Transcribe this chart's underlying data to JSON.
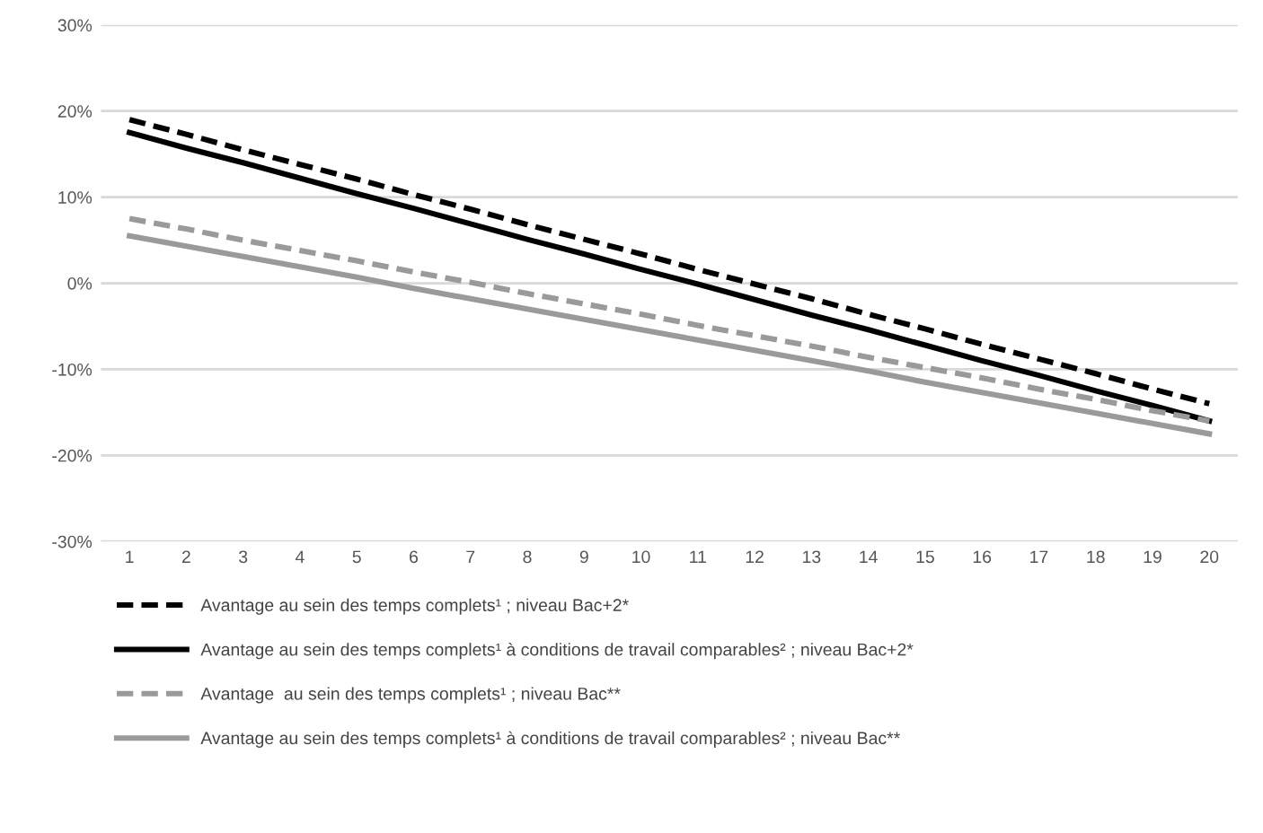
{
  "chart_data": {
    "type": "line",
    "categories": [
      "1",
      "2",
      "3",
      "4",
      "5",
      "6",
      "7",
      "8",
      "9",
      "10",
      "11",
      "12",
      "13",
      "14",
      "15",
      "16",
      "17",
      "18",
      "19",
      "20"
    ],
    "series": [
      {
        "name": "Avantage au sein des temps complets¹ ; niveau Bac+2*",
        "color": "#000000",
        "line_style": "dashed",
        "values": [
          19,
          17.3,
          15.5,
          13.8,
          12.1,
          10.3,
          8.6,
          6.8,
          5.1,
          3.4,
          1.6,
          -0.1,
          -1.8,
          -3.6,
          -5.3,
          -7.1,
          -8.8,
          -10.5,
          -12.3,
          -14
        ]
      },
      {
        "name": "Avantage au sein des temps complets¹ à conditions de travail comparables² ; niveau Bac+2*",
        "color": "#000000",
        "line_style": "solid",
        "values": [
          17.5,
          15.7,
          14.0,
          12.2,
          10.4,
          8.7,
          6.9,
          5.1,
          3.4,
          1.6,
          -0.1,
          -1.9,
          -3.7,
          -5.4,
          -7.2,
          -9.0,
          -10.7,
          -12.5,
          -14.2,
          -16
        ]
      },
      {
        "name": "Avantage  au sein des temps complets¹ ; niveau Bac**",
        "color": "#9a9a9a",
        "line_style": "dashed",
        "values": [
          7.5,
          6.3,
          5.0,
          3.8,
          2.6,
          1.3,
          0.1,
          -1.2,
          -2.4,
          -3.6,
          -4.9,
          -6.1,
          -7.3,
          -8.6,
          -9.8,
          -11.0,
          -12.3,
          -13.5,
          -14.8,
          -16
        ]
      },
      {
        "name": "Avantage au sein des temps complets¹ à conditions de travail comparables² ; niveau Bac**",
        "color": "#9a9a9a",
        "line_style": "solid",
        "values": [
          5.5,
          4.3,
          3.1,
          1.9,
          0.7,
          -0.6,
          -1.8,
          -3.0,
          -4.2,
          -5.4,
          -6.6,
          -7.8,
          -9.0,
          -10.2,
          -11.5,
          -12.7,
          -13.9,
          -15.1,
          -16.3,
          -17.5
        ]
      }
    ],
    "ylim": [
      -30,
      30
    ],
    "yticks": [
      {
        "value": -30,
        "label": "-30%"
      },
      {
        "value": -20,
        "label": "-20%"
      },
      {
        "value": -10,
        "label": "-10%"
      },
      {
        "value": 0,
        "label": "0%"
      },
      {
        "value": 10,
        "label": "10%"
      },
      {
        "value": 20,
        "label": "20%"
      },
      {
        "value": 30,
        "label": "30%"
      }
    ],
    "grid": "y",
    "legend": "bottom",
    "marker": "none"
  }
}
